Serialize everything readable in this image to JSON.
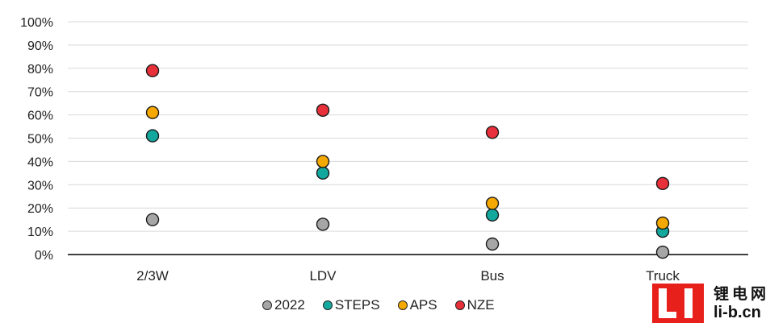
{
  "chart_data": {
    "type": "scatter",
    "categories": [
      "2/3W",
      "LDV",
      "Bus",
      "Truck"
    ],
    "y_ticks": [
      "0%",
      "10%",
      "20%",
      "30%",
      "40%",
      "50%",
      "60%",
      "70%",
      "80%",
      "90%",
      "100%"
    ],
    "ylim": [
      0,
      100
    ],
    "grid": true,
    "legend_position": "bottom",
    "series": [
      {
        "name": "2022",
        "color": "#a6a6a6",
        "values": [
          15,
          13,
          4.5,
          1
        ]
      },
      {
        "name": "STEPS",
        "color": "#13a89e",
        "values": [
          51,
          35,
          17,
          10
        ]
      },
      {
        "name": "APS",
        "color": "#f5a800",
        "values": [
          61,
          40,
          22,
          13.5
        ]
      },
      {
        "name": "NZE",
        "color": "#e8303a",
        "values": [
          79,
          62,
          52.5,
          30.5
        ]
      }
    ]
  },
  "watermark": {
    "cn": "锂电网",
    "en": "li-b.cn"
  }
}
